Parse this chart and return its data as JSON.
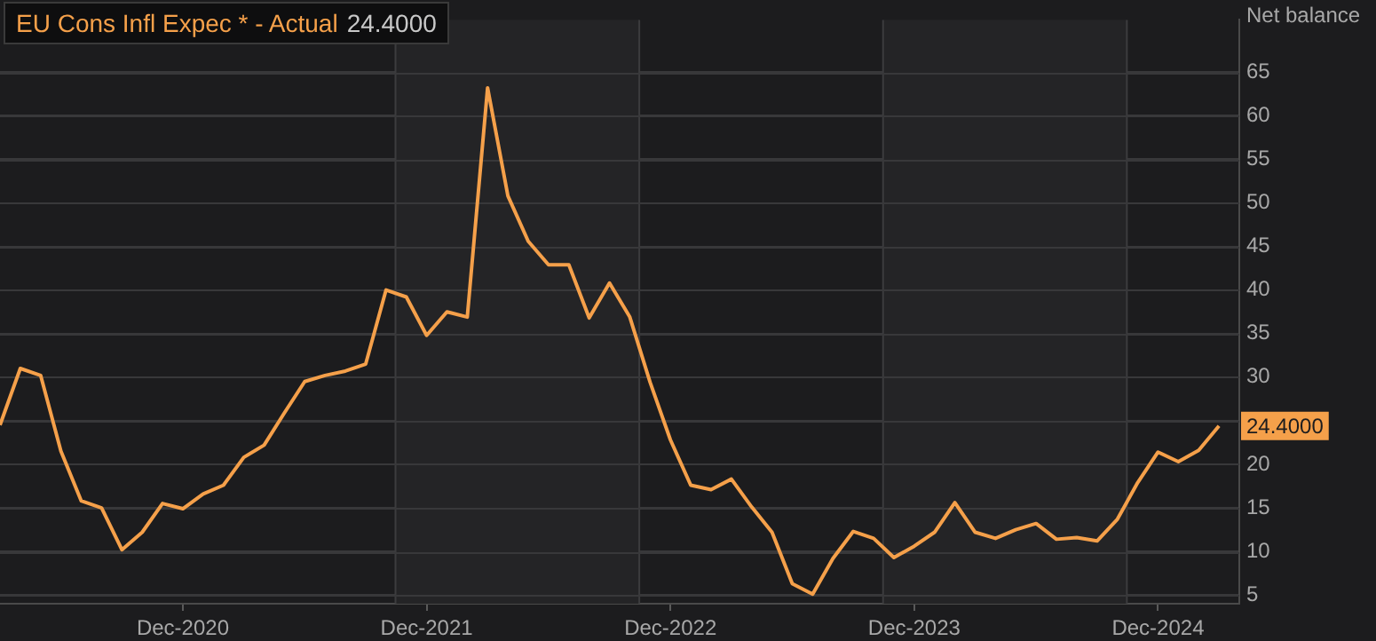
{
  "chart_data": {
    "type": "line",
    "ylabel": "Net balance",
    "x": [
      "2020-03",
      "2020-04",
      "2020-05",
      "2020-06",
      "2020-07",
      "2020-08",
      "2020-09",
      "2020-10",
      "2020-11",
      "2020-12",
      "2021-01",
      "2021-02",
      "2021-03",
      "2021-04",
      "2021-05",
      "2021-06",
      "2021-07",
      "2021-08",
      "2021-09",
      "2021-10",
      "2021-11",
      "2021-12",
      "2022-01",
      "2022-02",
      "2022-03",
      "2022-04",
      "2022-05",
      "2022-06",
      "2022-07",
      "2022-08",
      "2022-09",
      "2022-10",
      "2022-11",
      "2022-12",
      "2023-01",
      "2023-02",
      "2023-03",
      "2023-04",
      "2023-05",
      "2023-06",
      "2023-07",
      "2023-08",
      "2023-09",
      "2023-10",
      "2023-11",
      "2023-12",
      "2024-01",
      "2024-02",
      "2024-03",
      "2024-04",
      "2024-05",
      "2024-06",
      "2024-07",
      "2024-08",
      "2024-09",
      "2024-10",
      "2024-11",
      "2024-12",
      "2025-01",
      "2025-02",
      "2025-03"
    ],
    "series": [
      {
        "name": "EU Cons Infl Expec * - Actual",
        "color": "#f5a04a",
        "values": [
          24.5,
          31.0,
          30.2,
          21.5,
          15.8,
          15.0,
          10.2,
          12.2,
          15.5,
          14.9,
          16.6,
          17.6,
          20.8,
          22.2,
          25.9,
          29.5,
          30.2,
          30.7,
          31.5,
          40.0,
          39.2,
          34.8,
          37.5,
          36.9,
          63.2,
          50.8,
          45.6,
          42.9,
          42.9,
          36.8,
          40.8,
          36.9,
          29.4,
          22.8,
          17.6,
          17.1,
          18.3,
          15.1,
          12.2,
          6.3,
          5.1,
          9.2,
          12.3,
          11.5,
          9.3,
          10.6,
          12.2,
          15.6,
          12.2,
          11.5,
          12.5,
          13.2,
          11.4,
          11.6,
          11.2,
          13.7,
          17.9,
          21.4,
          20.3,
          21.6,
          24.4
        ],
        "value_labels": [
          null,
          null,
          null,
          null,
          null,
          null,
          null,
          null,
          null,
          null,
          null,
          null,
          null,
          null,
          null,
          null,
          null,
          null,
          null,
          null,
          null,
          null,
          null,
          null,
          null,
          null,
          null,
          null,
          null,
          null,
          null,
          null,
          null,
          null,
          null,
          null,
          null,
          null,
          null,
          null,
          null,
          null,
          null,
          null,
          null,
          null,
          null,
          null,
          null,
          null,
          null,
          null,
          null,
          null,
          null,
          null,
          null,
          null,
          null,
          null,
          "24.4000"
        ]
      }
    ],
    "xlim": [
      "2020-03",
      "2025-04"
    ],
    "xticks": [
      {
        "value": "2020-12",
        "label": "Dec-2020"
      },
      {
        "value": "2021-12",
        "label": "Dec-2021"
      },
      {
        "value": "2022-12",
        "label": "Dec-2022"
      },
      {
        "value": "2023-12",
        "label": "Dec-2023"
      },
      {
        "value": "2024-12",
        "label": "Dec-2024"
      }
    ],
    "ylim": [
      4,
      71
    ],
    "yticks": [
      5,
      10,
      15,
      20,
      {
        "value": 25,
        "label": null
      },
      30,
      35,
      40,
      45,
      50,
      55,
      60,
      65
    ],
    "bands": [
      {
        "axis": "x",
        "from": "2021-10-15",
        "to": "2022-10-15",
        "color": "#242426"
      },
      {
        "axis": "x",
        "from": "2023-10-15",
        "to": "2024-10-15",
        "color": "#242426"
      }
    ],
    "grid": "y",
    "legend": "top left",
    "marker": "none",
    "line_style": "solid"
  }
}
